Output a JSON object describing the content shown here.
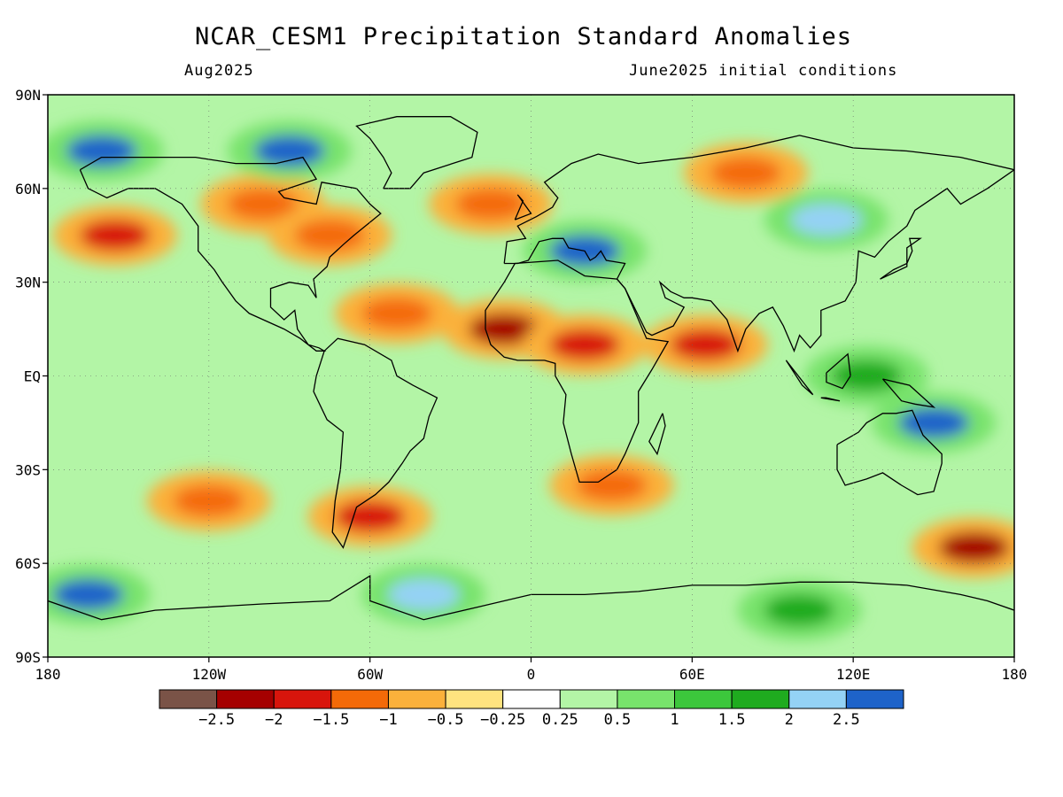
{
  "title": "NCAR_CESM1 Precipitation Standard Anomalies",
  "valid_month": "Aug2025",
  "init_label": "June2025 initial conditions",
  "map": {
    "lon_range": [
      -180,
      180
    ],
    "lat_range": [
      -90,
      90
    ],
    "lat_ticks": [
      {
        "lat": 90,
        "label": "90N"
      },
      {
        "lat": 60,
        "label": "60N"
      },
      {
        "lat": 30,
        "label": "30N"
      },
      {
        "lat": 0,
        "label": "EQ"
      },
      {
        "lat": -30,
        "label": "30S"
      },
      {
        "lat": -60,
        "label": "60S"
      },
      {
        "lat": -90,
        "label": "90S"
      }
    ],
    "lon_ticks": [
      {
        "lon": -180,
        "label": "180"
      },
      {
        "lon": -120,
        "label": "120W"
      },
      {
        "lon": -60,
        "label": "60W"
      },
      {
        "lon": 0,
        "label": "0"
      },
      {
        "lon": 60,
        "label": "60E"
      },
      {
        "lon": 120,
        "label": "120E"
      },
      {
        "lon": 180,
        "label": "180"
      }
    ],
    "anomaly_regions": [
      {
        "lon": -155,
        "lat": 45,
        "value": -2.0
      },
      {
        "lon": -100,
        "lat": 55,
        "value": -1.5
      },
      {
        "lon": -75,
        "lat": 45,
        "value": -1.5
      },
      {
        "lon": -90,
        "lat": 72,
        "value": 2.5
      },
      {
        "lon": -160,
        "lat": 72,
        "value": 2.5
      },
      {
        "lon": -50,
        "lat": 20,
        "value": -1.5
      },
      {
        "lon": -10,
        "lat": 15,
        "value": -2.5
      },
      {
        "lon": 20,
        "lat": 10,
        "value": -2.0
      },
      {
        "lon": 65,
        "lat": 10,
        "value": -2.0
      },
      {
        "lon": 30,
        "lat": -35,
        "value": -1.5
      },
      {
        "lon": -60,
        "lat": -45,
        "value": -2.0
      },
      {
        "lon": -120,
        "lat": -40,
        "value": -1.5
      },
      {
        "lon": 165,
        "lat": -55,
        "value": -2.5
      },
      {
        "lon": 20,
        "lat": 40,
        "value": 2.5
      },
      {
        "lon": 110,
        "lat": 50,
        "value": 2.0
      },
      {
        "lon": 125,
        "lat": 0,
        "value": 1.5
      },
      {
        "lon": -40,
        "lat": -70,
        "value": 2.0
      },
      {
        "lon": 100,
        "lat": -75,
        "value": 1.5
      },
      {
        "lon": -165,
        "lat": -70,
        "value": 2.5
      },
      {
        "lon": 150,
        "lat": -15,
        "value": 2.5
      },
      {
        "lon": 80,
        "lat": 65,
        "value": -1.5
      },
      {
        "lon": -15,
        "lat": 55,
        "value": -1.5
      }
    ]
  },
  "colorbar": {
    "colors": [
      "#7a5347",
      "#a50000",
      "#d8150c",
      "#f46a08",
      "#fbb13b",
      "#ffe37f",
      "#ffffff",
      "#b3f5a6",
      "#78e36c",
      "#3cc73c",
      "#1fab1f",
      "#94d2f5",
      "#1e63c9"
    ],
    "labels": [
      "-2.5",
      "-2",
      "-1.5",
      "-1",
      "-0.5",
      "-0.25",
      "0.25",
      "0.5",
      "1",
      "1.5",
      "2",
      "2.5"
    ]
  }
}
